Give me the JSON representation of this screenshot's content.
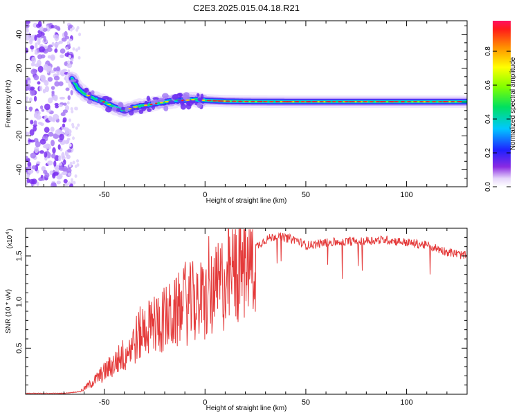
{
  "title": "C2E3.2025.015.04.18.R21",
  "colors": {
    "snr_line": "#e43a3a",
    "trace_red": "#e8202a",
    "scatter_purple": "#7b2cf0"
  },
  "chart_data": [
    {
      "type": "heatmap",
      "xlabel": "Height of straight line (km)",
      "ylabel": "Frequency (Hz)",
      "xlim": [
        -89,
        130
      ],
      "ylim": [
        -50,
        48
      ],
      "xticks": [
        -50,
        0,
        50,
        100
      ],
      "yticks": [
        40,
        20,
        0,
        -20,
        -40
      ],
      "colorbar": {
        "label": "Normalized spectral amplitude",
        "range": [
          0,
          0.98
        ],
        "ticks": [
          "0.0",
          "0.2",
          "0.4",
          "0.6",
          "0.8"
        ],
        "tick_values": [
          0,
          0.2,
          0.4,
          0.6,
          0.8
        ]
      },
      "noise_region": {
        "x_range": [
          -89,
          -68
        ],
        "freq_range": [
          -50,
          48
        ]
      },
      "dominant_trace": [
        {
          "x": -66,
          "f": 14
        },
        {
          "x": -63,
          "f": 8
        },
        {
          "x": -60,
          "f": 5
        },
        {
          "x": -55,
          "f": 2
        },
        {
          "x": -50,
          "f": 0
        },
        {
          "x": -45,
          "f": -3
        },
        {
          "x": -40,
          "f": -5
        },
        {
          "x": -35,
          "f": -3
        },
        {
          "x": -30,
          "f": -2
        },
        {
          "x": -25,
          "f": -1
        },
        {
          "x": -20,
          "f": 0
        },
        {
          "x": -15,
          "f": 1
        },
        {
          "x": -10,
          "f": 1
        },
        {
          "x": -5,
          "f": 1.5
        },
        {
          "x": 0,
          "f": 1
        },
        {
          "x": 10,
          "f": 0.5
        },
        {
          "x": 20,
          "f": 0.3
        },
        {
          "x": 40,
          "f": 0.2
        },
        {
          "x": 60,
          "f": 0.2
        },
        {
          "x": 80,
          "f": 0.2
        },
        {
          "x": 100,
          "f": 0.2
        },
        {
          "x": 130,
          "f": 0.2
        }
      ]
    },
    {
      "type": "line",
      "xlabel": "Height of straight line (km)",
      "ylabel": "SNR (10 * v/v)",
      "yscale_note": "(x10",
      "yscale_exp": "4",
      "xlim": [
        -89,
        130
      ],
      "ylim": [
        0,
        1.8
      ],
      "xticks": [
        -50,
        0,
        50,
        100
      ],
      "yticks": [
        0.5,
        1.0,
        1.5
      ],
      "ytick_labels": [
        "0.5",
        "1.0",
        "1.5"
      ],
      "series": [
        {
          "values_envelope": [
            {
              "x": -89,
              "y": 0.01
            },
            {
              "x": -70,
              "y": 0.01
            },
            {
              "x": -62,
              "y": 0.03
            },
            {
              "x": -55,
              "y": 0.15
            },
            {
              "x": -50,
              "y": 0.25
            },
            {
              "x": -45,
              "y": 0.35
            },
            {
              "x": -40,
              "y": 0.45
            },
            {
              "x": -35,
              "y": 0.6
            },
            {
              "x": -30,
              "y": 0.75
            },
            {
              "x": -25,
              "y": 0.8
            },
            {
              "x": -20,
              "y": 0.85
            },
            {
              "x": -15,
              "y": 0.9
            },
            {
              "x": -10,
              "y": 1.0
            },
            {
              "x": -5,
              "y": 1.05
            },
            {
              "x": 0,
              "y": 1.05
            },
            {
              "x": 5,
              "y": 1.15
            },
            {
              "x": 10,
              "y": 1.3
            },
            {
              "x": 15,
              "y": 1.4
            },
            {
              "x": 20,
              "y": 1.5
            },
            {
              "x": 25,
              "y": 1.6
            },
            {
              "x": 30,
              "y": 1.68
            },
            {
              "x": 35,
              "y": 1.72
            },
            {
              "x": 40,
              "y": 1.7
            },
            {
              "x": 45,
              "y": 1.68
            },
            {
              "x": 50,
              "y": 1.62
            },
            {
              "x": 55,
              "y": 1.63
            },
            {
              "x": 60,
              "y": 1.65
            },
            {
              "x": 70,
              "y": 1.66
            },
            {
              "x": 80,
              "y": 1.67
            },
            {
              "x": 90,
              "y": 1.68
            },
            {
              "x": 100,
              "y": 1.65
            },
            {
              "x": 110,
              "y": 1.62
            },
            {
              "x": 120,
              "y": 1.55
            },
            {
              "x": 130,
              "y": 1.5
            }
          ]
        }
      ]
    }
  ]
}
